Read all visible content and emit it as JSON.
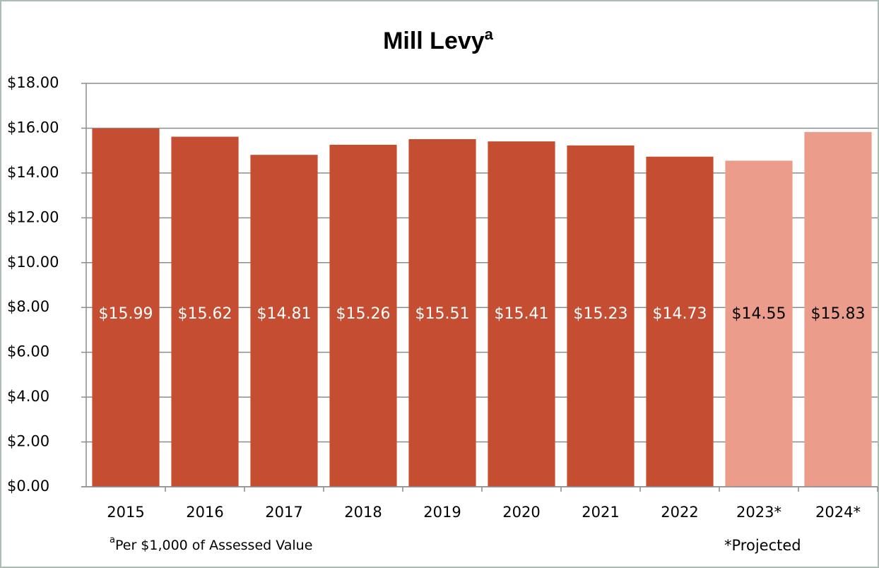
{
  "chart_data": {
    "type": "bar",
    "title": "Mill Levy",
    "title_marker": "a",
    "categories": [
      "2015",
      "2016",
      "2017",
      "2018",
      "2019",
      "2020",
      "2021",
      "2022",
      "2023*",
      "2024*"
    ],
    "values": [
      15.99,
      15.62,
      14.81,
      15.26,
      15.51,
      15.41,
      15.23,
      14.73,
      14.55,
      15.83
    ],
    "value_labels": [
      "$15.99",
      "$15.62",
      "$14.81",
      "$15.26",
      "$15.51",
      "$15.41",
      "$15.23",
      "$14.73",
      "$14.55",
      "$15.83"
    ],
    "colors": [
      "#c54e32",
      "#c54e32",
      "#c54e32",
      "#c54e32",
      "#c54e32",
      "#c54e32",
      "#c54e32",
      "#c54e32",
      "#eb9c8b",
      "#eb9c8b"
    ],
    "label_colors": [
      "#ffffff",
      "#ffffff",
      "#ffffff",
      "#ffffff",
      "#ffffff",
      "#ffffff",
      "#ffffff",
      "#ffffff",
      "#000000",
      "#000000"
    ],
    "ylim": [
      0,
      18
    ],
    "yticks": [
      {
        "value": 0,
        "label": "$0.00"
      },
      {
        "value": 2,
        "label": "$2.00"
      },
      {
        "value": 4,
        "label": "$4.00"
      },
      {
        "value": 6,
        "label": "$6.00"
      },
      {
        "value": 8,
        "label": "$8.00"
      },
      {
        "value": 10,
        "label": "$10.00"
      },
      {
        "value": 12,
        "label": "$12.00"
      },
      {
        "value": 14,
        "label": "$14.00"
      },
      {
        "value": 16,
        "label": "$16.00"
      },
      {
        "value": 18,
        "label": "$18.00"
      }
    ],
    "grid": true,
    "footnote_marker": "a",
    "footnote": "Per $1,000 of Assessed Value",
    "note": "*Projected"
  }
}
